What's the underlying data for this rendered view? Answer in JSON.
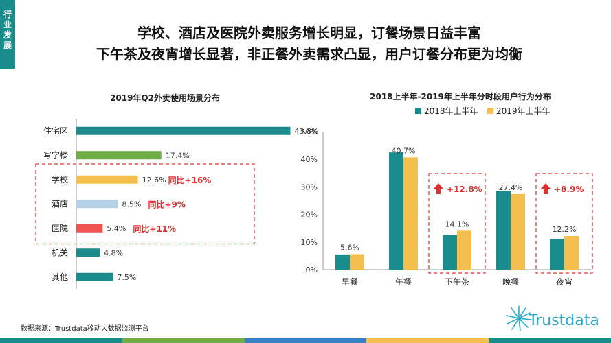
{
  "side_tab": [
    "行业",
    "发展"
  ],
  "headline": {
    "line1": "学校、酒店及医院外卖服务增长明显，订餐场景日益丰富",
    "line2": "下午茶及夜宵增长显著，非正餐外卖需求凸显，用户订餐分布更为均衡"
  },
  "source": "数据来源：Trustdata移动大数据监测平台",
  "logo_text": "Trustdata",
  "chart_data": [
    {
      "type": "bar",
      "orientation": "horizontal",
      "title": "2019年Q2外卖使用场景分布",
      "categories": [
        "住宅区",
        "写字楼",
        "学校",
        "酒店",
        "医院",
        "机关",
        "其他"
      ],
      "values": [
        43.8,
        17.4,
        12.6,
        8.5,
        5.4,
        4.8,
        7.5
      ],
      "value_labels": [
        "43.8%",
        "17.4%",
        "12.6%",
        "8.5%",
        "5.4%",
        "4.8%",
        "7.5%"
      ],
      "colors": [
        "#1a8c8c",
        "#70ad47",
        "#f4bf4f",
        "#b4d3e8",
        "#ef5350",
        "#1a8c8c",
        "#1a8c8c"
      ],
      "xlim": [
        0,
        45
      ],
      "annotations": [
        {
          "category": "学校",
          "text": "同比+16%"
        },
        {
          "category": "酒店",
          "text": "同比+9%"
        },
        {
          "category": "医院",
          "text": "同比+11%"
        }
      ],
      "highlight_categories": [
        "学校",
        "酒店",
        "医院"
      ]
    },
    {
      "type": "bar",
      "title": "2018上半年-2019年上半年分时段用户行为分布",
      "categories": [
        "早餐",
        "午餐",
        "下午茶",
        "晚餐",
        "夜宵"
      ],
      "series": [
        {
          "name": "2018年上半年",
          "color": "#1a8c8c",
          "values": [
            5.5,
            42.5,
            12.5,
            28.5,
            11.2
          ]
        },
        {
          "name": "2019年上半年",
          "color": "#f4bf4f",
          "values": [
            5.6,
            40.7,
            14.1,
            27.4,
            12.2
          ],
          "value_labels": [
            "5.6%",
            "40.7%",
            "14.1%",
            "27.4%",
            "12.2%"
          ]
        }
      ],
      "ylim": [
        0,
        50
      ],
      "yticks": [
        "0%",
        "10%",
        "20%",
        "30%",
        "40%",
        "50%"
      ],
      "legend": "top",
      "annotations": [
        {
          "category": "下午茶",
          "text": "+12.8%"
        },
        {
          "category": "夜宵",
          "text": "+8.9%"
        }
      ]
    }
  ],
  "colors": {
    "accent": "#1a8c8c",
    "highlight": "#e03030"
  },
  "bottom_bar_colors": [
    "#1a8c8c",
    "#70ad47",
    "#3a7fc4",
    "#f4bf4f",
    "#1a8c8c"
  ]
}
